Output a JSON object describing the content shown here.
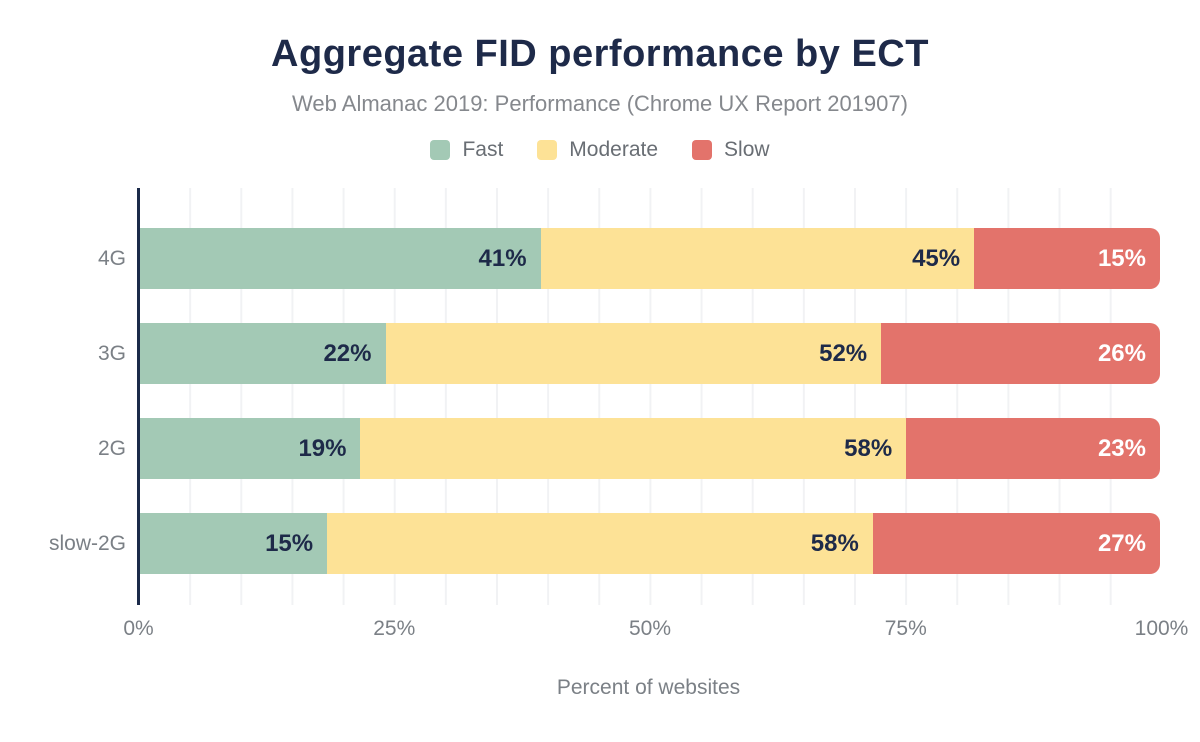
{
  "header": {
    "title": "Aggregate FID performance by ECT",
    "subtitle": "Web Almanac 2019: Performance (Chrome UX Report 201907)"
  },
  "chart_data": {
    "type": "bar",
    "orientation": "horizontal",
    "stacked": true,
    "title": "Aggregate FID performance by ECT",
    "subtitle": "Web Almanac 2019: Performance (Chrome UX Report 201907)",
    "categories": [
      "4G",
      "3G",
      "2G",
      "slow-2G"
    ],
    "series": [
      {
        "name": "Fast",
        "color": "#a3c9b5",
        "values": [
          41,
          22,
          19,
          15
        ]
      },
      {
        "name": "Moderate",
        "color": "#fde296",
        "values": [
          45,
          52,
          58,
          58
        ]
      },
      {
        "name": "Slow",
        "color": "#e3736b",
        "values": [
          15,
          26,
          23,
          27
        ]
      }
    ],
    "value_suffix": "%",
    "xlabel": "Percent of websites",
    "x_ticks": [
      "0%",
      "25%",
      "50%",
      "75%",
      "100%"
    ],
    "xlim": [
      0,
      100
    ],
    "grid": "vertical gridlines every 5%",
    "legend_position": "top"
  },
  "colors": {
    "title_text": "#1e2a49",
    "subtitle_text": "#85888d",
    "axis_text": "#7b8086",
    "axis_line": "#1b2a49",
    "gridline": "#f1f2f4",
    "bar_label_dark": "#1e2a49",
    "bar_label_on_slow": "#ffffff",
    "background": "#ffffff"
  }
}
